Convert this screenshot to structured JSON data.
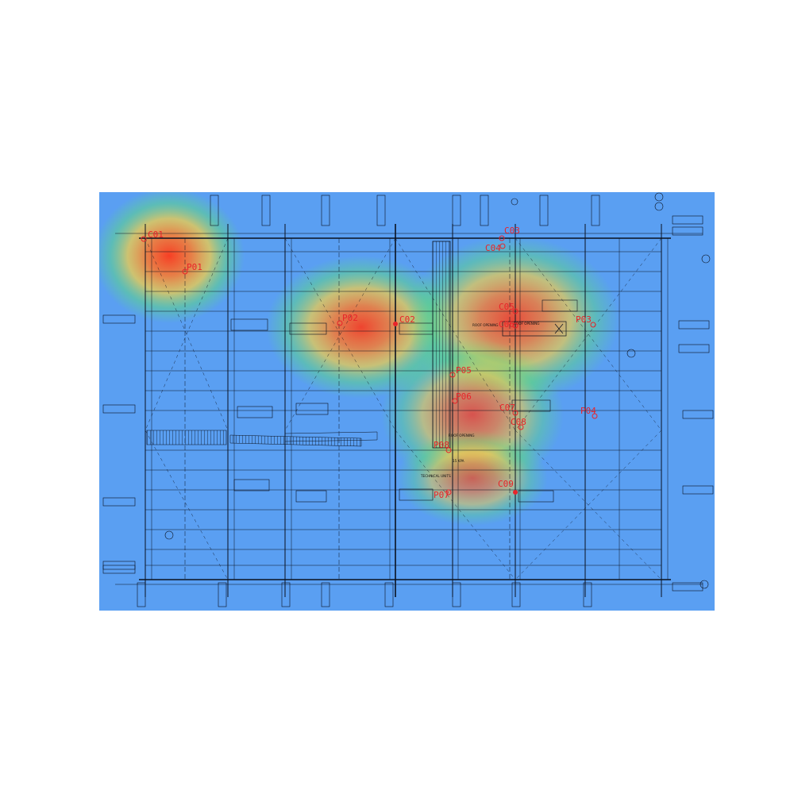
{
  "colors": {
    "background": "#5a9ff2",
    "line": "#0b1220",
    "marker": "#e8242a",
    "heat_hot": "#ff3a1a",
    "heat_warm": "#ffd23a",
    "heat_cool": "#5fe070"
  },
  "markers": [
    {
      "id": "c01",
      "label": "C01"
    },
    {
      "id": "p01",
      "label": "P01"
    },
    {
      "id": "p02",
      "label": "P02"
    },
    {
      "id": "c02",
      "label": "C02"
    },
    {
      "id": "c03",
      "label": "C03"
    },
    {
      "id": "c04",
      "label": "C04"
    },
    {
      "id": "c05",
      "label": "C05"
    },
    {
      "id": "c06",
      "label": "C06"
    },
    {
      "id": "p03",
      "label": "P03"
    },
    {
      "id": "p05",
      "label": "P05"
    },
    {
      "id": "p06",
      "label": "P06"
    },
    {
      "id": "c07",
      "label": "C07"
    },
    {
      "id": "c08",
      "label": "C08"
    },
    {
      "id": "p04",
      "label": "P04"
    },
    {
      "id": "p08",
      "label": "P08"
    },
    {
      "id": "p07",
      "label": "P07"
    },
    {
      "id": "c09",
      "label": "C09"
    }
  ],
  "heat_spots": [
    {
      "id": "spot-c01",
      "intensity": 1.0
    },
    {
      "id": "spot-p02",
      "intensity": 0.95
    },
    {
      "id": "spot-c05",
      "intensity": 0.9
    },
    {
      "id": "spot-p06",
      "intensity": 0.8
    },
    {
      "id": "spot-c09",
      "intensity": 0.7
    }
  ],
  "plan_notes": {
    "roof_opening_1": "ROOF OPENING",
    "roof_opening_2": "ROOF OPENING",
    "roof_opening_3": "ROOF OPENING",
    "technical_units": "TECHNICAL UNITS",
    "slab_note": "15 KPA"
  }
}
